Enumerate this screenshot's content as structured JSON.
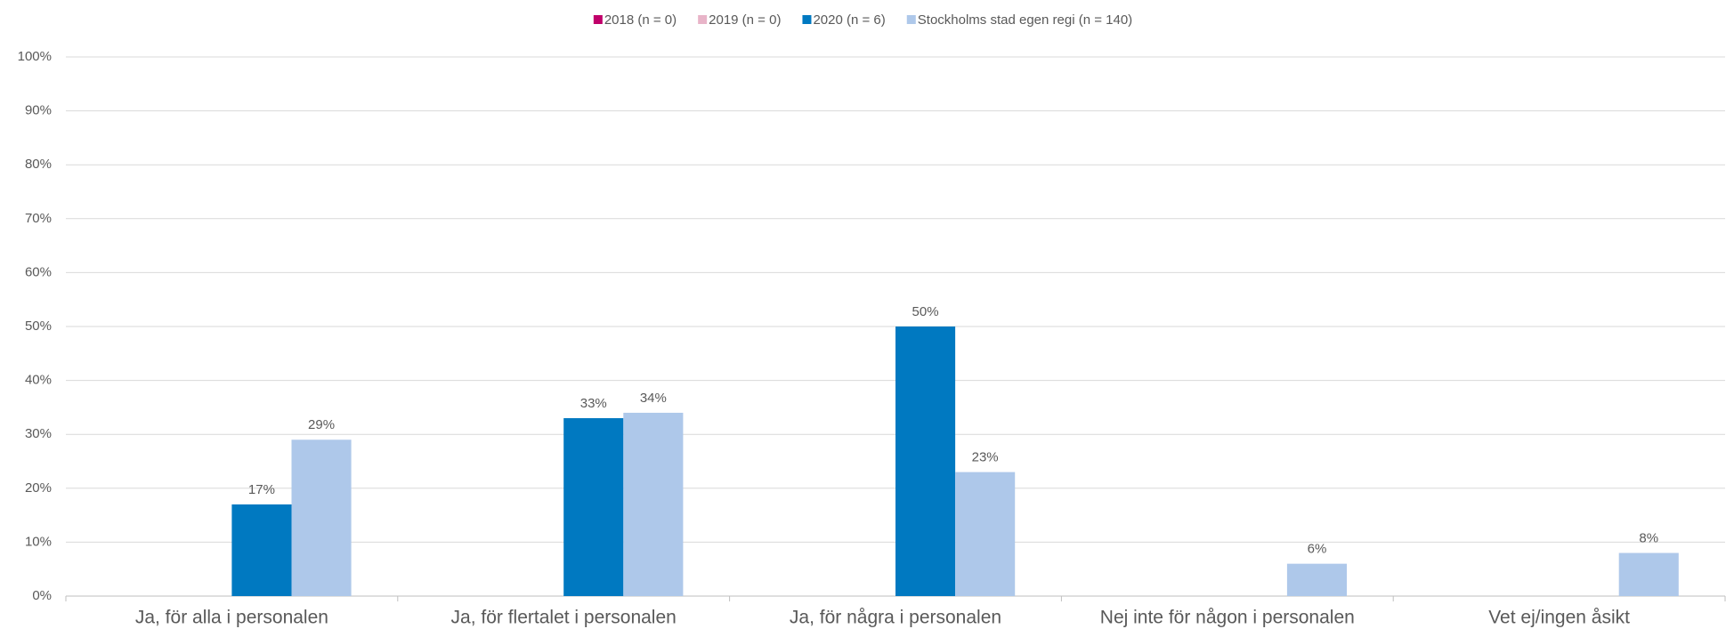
{
  "chart_data": {
    "type": "bar",
    "categories": [
      "Ja, för alla i personalen",
      "Ja, för flertalet i personalen",
      "Ja, för några i personalen",
      "Nej inte för någon i personalen",
      "Vet ej/ingen åsikt"
    ],
    "series": [
      {
        "name": "2018 (n = 0)",
        "color": "#c0006a",
        "values": [
          null,
          null,
          null,
          null,
          null
        ]
      },
      {
        "name": "2019 (n = 0)",
        "color": "#e8b4c8",
        "values": [
          null,
          null,
          null,
          null,
          null
        ]
      },
      {
        "name": "2020 (n = 6)",
        "color": "#0079c1",
        "values": [
          17,
          33,
          50,
          null,
          null
        ],
        "value_labels": [
          "17%",
          "33%",
          "50%",
          null,
          null
        ]
      },
      {
        "name": "Stockholms stad egen regi (n = 140)",
        "color": "#aec8ea",
        "values": [
          29,
          34,
          23,
          6,
          8
        ],
        "value_labels": [
          "29%",
          "34%",
          "23%",
          "6%",
          "8%"
        ]
      }
    ],
    "ylim": [
      0,
      100
    ],
    "yticks": [
      {
        "value": 0,
        "label": "0%"
      },
      {
        "value": 10,
        "label": "10%"
      },
      {
        "value": 20,
        "label": "20%"
      },
      {
        "value": 30,
        "label": "30%"
      },
      {
        "value": 40,
        "label": "40%"
      },
      {
        "value": 50,
        "label": "50%"
      },
      {
        "value": 60,
        "label": "60%"
      },
      {
        "value": 70,
        "label": "70%"
      },
      {
        "value": 80,
        "label": "80%"
      },
      {
        "value": 90,
        "label": "90%"
      },
      {
        "value": 100,
        "label": "100%"
      }
    ],
    "grid": true,
    "legend": "top"
  }
}
